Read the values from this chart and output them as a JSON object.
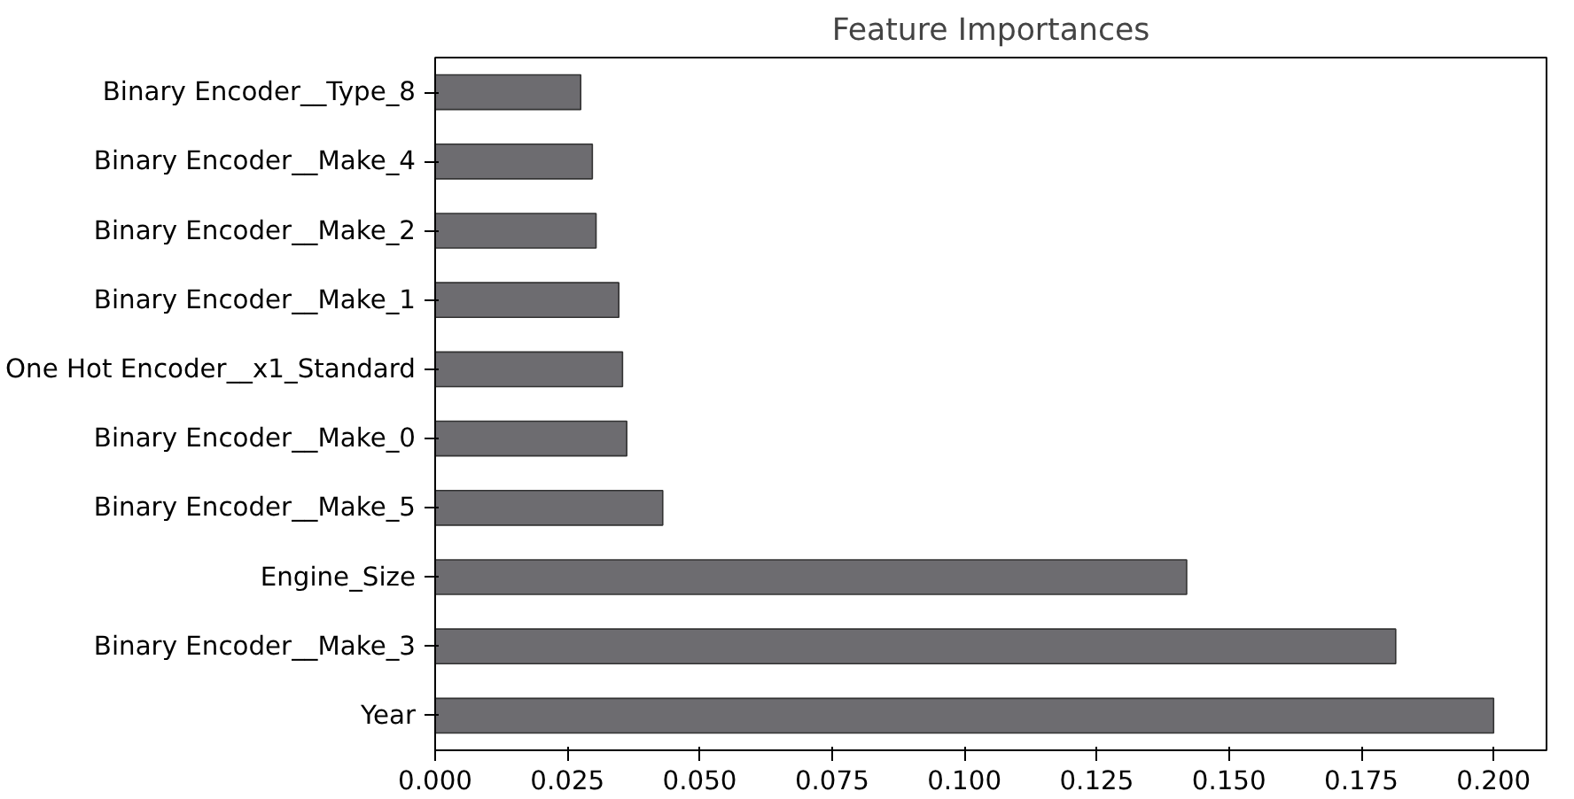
{
  "chart_data": {
    "type": "bar",
    "orientation": "horizontal",
    "title": "Feature Importances",
    "categories": [
      "Binary Encoder__Type_8",
      "Binary Encoder__Make_4",
      "Binary Encoder__Make_2",
      "Binary Encoder__Make_1",
      "One Hot Encoder__x1_Standard",
      "Binary Encoder__Make_0",
      "Binary Encoder__Make_5",
      "Engine_Size",
      "Binary Encoder__Make_3",
      "Year"
    ],
    "values": [
      0.0275,
      0.0297,
      0.0304,
      0.0347,
      0.0354,
      0.0362,
      0.043,
      0.142,
      0.1815,
      0.2
    ],
    "color": "#6d6c70",
    "xlim": [
      0,
      0.21
    ],
    "xticks": [
      {
        "value": 0,
        "label": "0.000"
      },
      {
        "value": 0.025,
        "label": "0.025"
      },
      {
        "value": 0.05,
        "label": "0.050"
      },
      {
        "value": 0.075,
        "label": "0.075"
      },
      {
        "value": 0.1,
        "label": "0.100"
      },
      {
        "value": 0.125,
        "label": "0.125"
      },
      {
        "value": 0.15,
        "label": "0.150"
      },
      {
        "value": 0.175,
        "label": "0.175"
      },
      {
        "value": 0.2,
        "label": "0.200"
      }
    ],
    "grid": false
  }
}
